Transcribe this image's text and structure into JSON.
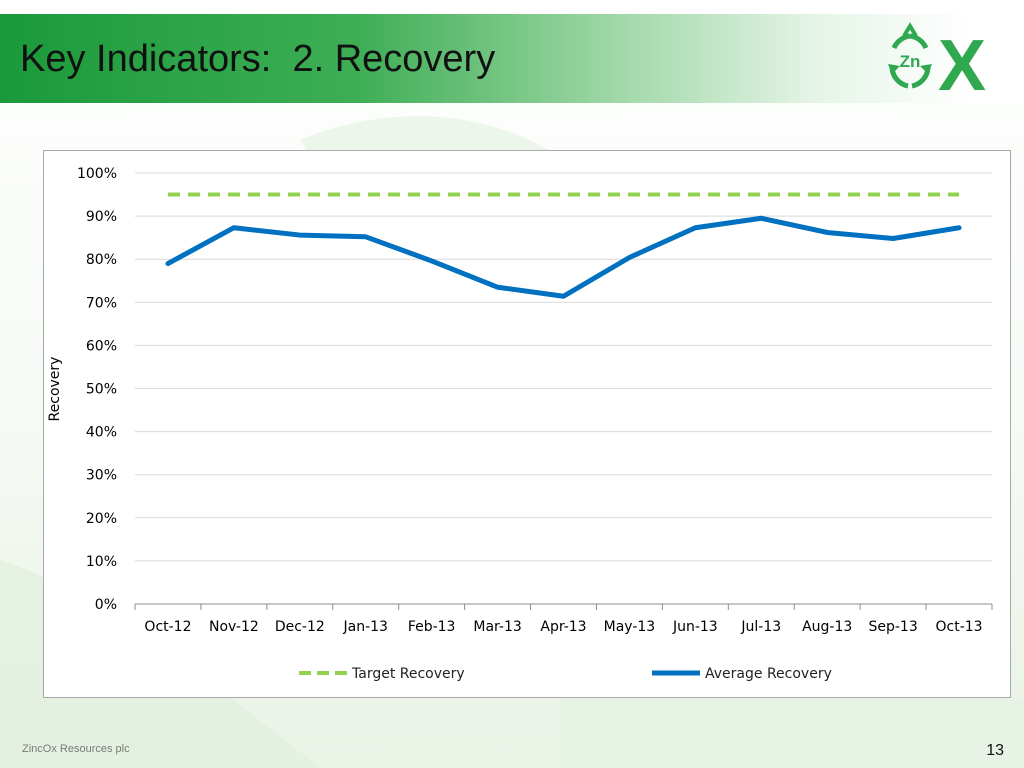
{
  "slide": {
    "title": "Key Indicators:  2. Recovery",
    "footer": "ZincOx Resources plc",
    "page_number": "13",
    "logo_text": "Zn",
    "logo_letter": "X",
    "colors": {
      "title_bar": "#1a9a3a",
      "logo_green": "#2fa84f"
    }
  },
  "chart_data": {
    "type": "line",
    "title": "",
    "xlabel": "",
    "ylabel": "Recovery",
    "categories": [
      "Oct-12",
      "Nov-12",
      "Dec-12",
      "Jan-13",
      "Feb-13",
      "Mar-13",
      "Apr-13",
      "May-13",
      "Jun-13",
      "Jul-13",
      "Aug-13",
      "Sep-13",
      "Oct-13"
    ],
    "ylim": [
      0,
      1.0
    ],
    "yticks": [
      "0%",
      "10%",
      "20%",
      "30%",
      "40%",
      "50%",
      "60%",
      "70%",
      "80%",
      "90%",
      "100%"
    ],
    "grid": true,
    "legend_position": "bottom",
    "series": [
      {
        "name": "Target Recovery",
        "style": "dashed",
        "color": "#92d050",
        "values": [
          0.95,
          0.95,
          0.95,
          0.95,
          0.95,
          0.95,
          0.95,
          0.95,
          0.95,
          0.95,
          0.95,
          0.95,
          0.95
        ]
      },
      {
        "name": "Average Recovery",
        "style": "solid",
        "color": "#0070c0",
        "values": [
          0.79,
          0.873,
          0.856,
          0.852,
          0.796,
          0.735,
          0.714,
          0.804,
          0.873,
          0.895,
          0.862,
          0.848,
          0.873
        ]
      }
    ]
  }
}
